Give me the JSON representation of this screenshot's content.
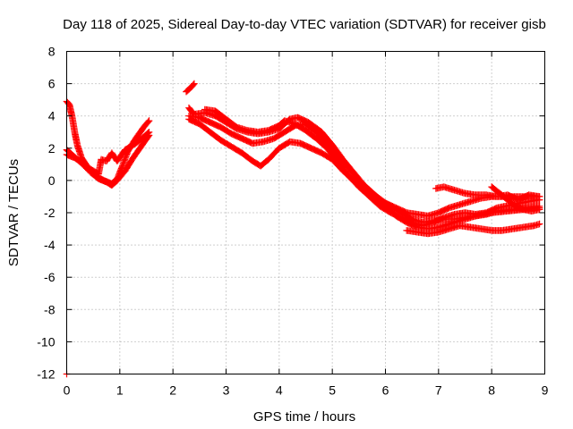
{
  "chart_data": {
    "type": "scatter",
    "title": "Day 118 of 2025, Sidereal Day-to-day VTEC variation (SDTVAR) for receiver gisb",
    "xlabel": "GPS time / hours",
    "ylabel": "SDTVAR / TECUs",
    "xlim": [
      0,
      9
    ],
    "ylim": [
      -12,
      8
    ],
    "xticks": [
      "0",
      "1",
      "2",
      "3",
      "4",
      "5",
      "6",
      "7",
      "8",
      "9"
    ],
    "yticks": [
      "-12",
      "-10",
      "-8",
      "-6",
      "-4",
      "-2",
      "0",
      "2",
      "4",
      "6",
      "8"
    ],
    "grid": true,
    "marker": "+",
    "color": "#ff0000",
    "series": [
      {
        "name": "segment-a",
        "values": [
          [
            0.0,
            4.9
          ],
          [
            0.05,
            4.7
          ],
          [
            0.1,
            4.0
          ],
          [
            0.15,
            3.0
          ],
          [
            0.2,
            2.2
          ],
          [
            0.28,
            1.4
          ],
          [
            0.4,
            0.8
          ],
          [
            0.55,
            0.3
          ],
          [
            0.7,
            0.0
          ],
          [
            0.85,
            -0.2
          ],
          [
            0.95,
            0.1
          ],
          [
            1.05,
            0.9
          ],
          [
            1.15,
            1.8
          ],
          [
            1.3,
            2.6
          ],
          [
            1.45,
            3.3
          ],
          [
            1.55,
            3.7
          ]
        ]
      },
      {
        "name": "segment-b",
        "values": [
          [
            0.0,
            1.9
          ],
          [
            0.1,
            1.6
          ],
          [
            0.2,
            1.3
          ],
          [
            0.3,
            1.0
          ],
          [
            0.45,
            0.5
          ],
          [
            0.6,
            0.1
          ],
          [
            0.75,
            -0.1
          ],
          [
            0.85,
            -0.3
          ],
          [
            0.95,
            0.0
          ],
          [
            1.1,
            0.6
          ],
          [
            1.25,
            1.4
          ],
          [
            1.4,
            2.1
          ],
          [
            1.55,
            2.8
          ]
        ]
      },
      {
        "name": "segment-c",
        "values": [
          [
            0.0,
            1.6
          ],
          [
            0.15,
            1.4
          ],
          [
            0.3,
            1.1
          ],
          [
            0.45,
            0.7
          ],
          [
            0.6,
            0.4
          ],
          [
            0.65,
            1.3
          ],
          [
            0.75,
            1.2
          ],
          [
            0.85,
            1.7
          ],
          [
            0.95,
            1.2
          ],
          [
            1.1,
            1.9
          ],
          [
            1.3,
            2.3
          ],
          [
            1.45,
            2.7
          ],
          [
            1.55,
            3.0
          ]
        ]
      },
      {
        "name": "segment-d",
        "values": [
          [
            2.25,
            5.5
          ],
          [
            2.35,
            5.8
          ],
          [
            2.4,
            6.0
          ]
        ]
      },
      {
        "name": "segment-e",
        "values": [
          [
            2.3,
            4.5
          ],
          [
            2.4,
            4.1
          ],
          [
            2.6,
            4.2
          ],
          [
            2.8,
            4.0
          ],
          [
            3.0,
            3.6
          ],
          [
            3.2,
            3.2
          ],
          [
            3.4,
            3.0
          ],
          [
            3.6,
            2.9
          ],
          [
            3.8,
            3.0
          ],
          [
            4.0,
            3.2
          ],
          [
            4.2,
            3.8
          ],
          [
            4.35,
            3.9
          ],
          [
            4.55,
            3.6
          ],
          [
            4.8,
            3.0
          ],
          [
            5.0,
            2.2
          ],
          [
            5.2,
            1.3
          ],
          [
            5.4,
            0.5
          ],
          [
            5.6,
            -0.3
          ],
          [
            5.8,
            -0.9
          ],
          [
            6.0,
            -1.4
          ],
          [
            6.2,
            -1.7
          ],
          [
            6.4,
            -2.0
          ],
          [
            6.6,
            -2.1
          ],
          [
            6.8,
            -2.2
          ],
          [
            7.0,
            -2.0
          ],
          [
            7.2,
            -1.7
          ],
          [
            7.4,
            -1.5
          ],
          [
            7.6,
            -1.3
          ],
          [
            7.8,
            -1.1
          ],
          [
            8.0,
            -1.0
          ],
          [
            8.3,
            -1.0
          ],
          [
            8.6,
            -1.0
          ],
          [
            8.9,
            -1.0
          ]
        ]
      },
      {
        "name": "segment-f",
        "values": [
          [
            2.3,
            4.0
          ],
          [
            2.5,
            3.9
          ],
          [
            2.7,
            3.6
          ],
          [
            2.9,
            3.3
          ],
          [
            3.1,
            2.9
          ],
          [
            3.3,
            2.6
          ],
          [
            3.5,
            2.3
          ],
          [
            3.7,
            2.4
          ],
          [
            3.9,
            2.6
          ],
          [
            4.1,
            3.0
          ],
          [
            4.3,
            3.4
          ],
          [
            4.5,
            3.5
          ],
          [
            4.7,
            3.0
          ],
          [
            4.9,
            2.3
          ],
          [
            5.1,
            1.6
          ],
          [
            5.3,
            0.8
          ],
          [
            5.5,
            0.0
          ],
          [
            5.7,
            -0.6
          ],
          [
            5.9,
            -1.2
          ],
          [
            6.1,
            -1.6
          ],
          [
            6.3,
            -2.0
          ],
          [
            6.5,
            -2.4
          ],
          [
            6.7,
            -2.6
          ],
          [
            6.9,
            -2.5
          ],
          [
            7.1,
            -2.4
          ],
          [
            7.3,
            -2.4
          ],
          [
            7.5,
            -2.3
          ],
          [
            7.7,
            -2.2
          ],
          [
            7.9,
            -2.1
          ],
          [
            8.1,
            -1.9
          ],
          [
            8.4,
            -1.8
          ],
          [
            8.7,
            -1.7
          ],
          [
            8.9,
            -1.6
          ]
        ]
      },
      {
        "name": "segment-g",
        "values": [
          [
            2.3,
            3.8
          ],
          [
            2.5,
            3.5
          ],
          [
            2.7,
            3.0
          ],
          [
            2.9,
            2.5
          ],
          [
            3.1,
            2.1
          ],
          [
            3.3,
            1.7
          ],
          [
            3.5,
            1.2
          ],
          [
            3.65,
            0.9
          ],
          [
            3.8,
            1.3
          ],
          [
            4.0,
            2.0
          ],
          [
            4.2,
            2.4
          ],
          [
            4.4,
            2.3
          ],
          [
            4.6,
            2.0
          ],
          [
            4.8,
            1.7
          ],
          [
            5.0,
            1.3
          ],
          [
            5.2,
            0.6
          ],
          [
            5.4,
            0.0
          ],
          [
            5.6,
            -0.6
          ],
          [
            5.8,
            -1.1
          ],
          [
            6.0,
            -1.6
          ],
          [
            6.2,
            -2.2
          ],
          [
            6.4,
            -2.6
          ],
          [
            6.6,
            -2.9
          ],
          [
            6.8,
            -3.0
          ],
          [
            7.0,
            -2.9
          ],
          [
            7.2,
            -2.7
          ],
          [
            7.4,
            -2.5
          ],
          [
            7.6,
            -2.3
          ],
          [
            7.8,
            -2.1
          ],
          [
            8.0,
            -2.0
          ],
          [
            8.3,
            -1.9
          ],
          [
            8.6,
            -1.8
          ],
          [
            8.9,
            -1.7
          ]
        ]
      },
      {
        "name": "segment-h",
        "values": [
          [
            2.6,
            4.4
          ],
          [
            2.8,
            4.3
          ],
          [
            3.0,
            3.8
          ],
          [
            3.2,
            3.3
          ],
          [
            3.4,
            3.1
          ],
          [
            3.6,
            3.0
          ],
          [
            3.8,
            3.1
          ],
          [
            4.0,
            3.4
          ],
          [
            4.1,
            3.7
          ],
          [
            4.3,
            3.5
          ],
          [
            4.5,
            3.1
          ],
          [
            4.7,
            2.6
          ],
          [
            4.9,
            2.0
          ],
          [
            5.1,
            1.2
          ],
          [
            5.3,
            0.3
          ],
          [
            5.5,
            -0.4
          ],
          [
            5.7,
            -1.0
          ],
          [
            5.9,
            -1.6
          ],
          [
            6.1,
            -2.0
          ],
          [
            6.3,
            -2.3
          ],
          [
            6.5,
            -2.6
          ],
          [
            6.7,
            -2.8
          ],
          [
            6.9,
            -2.6
          ],
          [
            7.1,
            -2.3
          ],
          [
            7.3,
            -2.1
          ],
          [
            7.5,
            -2.0
          ],
          [
            7.7,
            -2.1
          ],
          [
            7.9,
            -2.0
          ],
          [
            8.1,
            -1.7
          ],
          [
            8.4,
            -1.5
          ],
          [
            8.7,
            -1.3
          ],
          [
            8.9,
            -1.2
          ]
        ]
      },
      {
        "name": "segment-i",
        "values": [
          [
            6.4,
            -3.1
          ],
          [
            6.6,
            -3.2
          ],
          [
            6.8,
            -3.3
          ],
          [
            7.0,
            -3.2
          ],
          [
            7.2,
            -3.0
          ],
          [
            7.4,
            -2.8
          ],
          [
            7.6,
            -2.9
          ],
          [
            7.8,
            -3.0
          ],
          [
            8.0,
            -3.1
          ],
          [
            8.2,
            -3.1
          ],
          [
            8.4,
            -3.0
          ],
          [
            8.6,
            -2.9
          ],
          [
            8.8,
            -2.8
          ],
          [
            8.9,
            -2.7
          ]
        ]
      },
      {
        "name": "segment-j",
        "values": [
          [
            6.95,
            -0.5
          ],
          [
            7.1,
            -0.4
          ],
          [
            7.3,
            -0.6
          ],
          [
            7.5,
            -0.8
          ],
          [
            7.7,
            -0.9
          ],
          [
            7.9,
            -0.9
          ],
          [
            8.1,
            -1.0
          ],
          [
            8.3,
            -0.9
          ],
          [
            8.5,
            -1.2
          ],
          [
            8.7,
            -0.9
          ],
          [
            8.9,
            -1.0
          ]
        ]
      },
      {
        "name": "segment-k",
        "values": [
          [
            8.0,
            -0.4
          ],
          [
            8.15,
            -0.8
          ],
          [
            8.3,
            -1.2
          ],
          [
            8.45,
            -1.6
          ],
          [
            8.6,
            -1.8
          ],
          [
            8.75,
            -1.9
          ],
          [
            8.9,
            -1.8
          ]
        ]
      },
      {
        "name": "isolated-point",
        "values": [
          [
            0.0,
            -12.0
          ]
        ]
      }
    ]
  }
}
